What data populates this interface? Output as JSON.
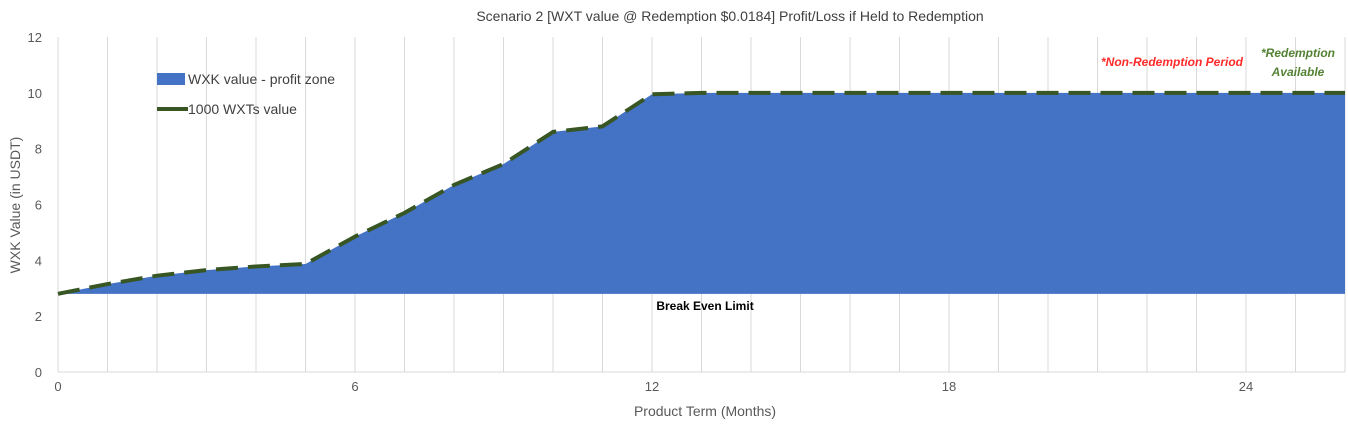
{
  "chart_data": {
    "type": "area",
    "title": "Scenario 2 [WXT value @ Redemption $0.0184] Profit/Loss if Held to Redemption",
    "xlabel": "Product Term (Months)",
    "ylabel": "WXK Value (in USDT)",
    "xlim": [
      0,
      26
    ],
    "ylim": [
      0,
      12
    ],
    "x_ticks": [
      "0",
      "6",
      "12",
      "18",
      "24"
    ],
    "y_ticks": [
      "0",
      "2",
      "4",
      "6",
      "8",
      "10",
      "12"
    ],
    "grid": "vertical",
    "legend_position": "top-left",
    "series": [
      {
        "name": "WXK value - profit zone",
        "kind": "area",
        "color": "#4472C4",
        "baseline": 2.8,
        "x": [
          0,
          1,
          2,
          3,
          4,
          5,
          6,
          7,
          8,
          9,
          10,
          11,
          12,
          13,
          14,
          15,
          16,
          17,
          18,
          19,
          20,
          21,
          22,
          23,
          24,
          25,
          26
        ],
        "values": [
          2.8,
          3.15,
          3.45,
          3.65,
          3.78,
          3.87,
          4.85,
          5.7,
          6.7,
          7.45,
          8.6,
          8.8,
          9.95,
          10,
          10,
          10,
          10,
          10,
          10,
          10,
          10,
          10,
          10,
          10,
          10,
          10,
          10
        ]
      },
      {
        "name": "1000 WXTs value",
        "kind": "line",
        "color": "#375623",
        "dashed": true,
        "x": [
          0,
          1,
          2,
          3,
          4,
          5,
          6,
          7,
          8,
          9,
          10,
          11,
          12,
          13,
          14,
          15,
          16,
          17,
          18,
          19,
          20,
          21,
          22,
          23,
          24,
          25,
          26
        ],
        "values": [
          2.8,
          3.15,
          3.45,
          3.65,
          3.78,
          3.87,
          4.85,
          5.7,
          6.7,
          7.45,
          8.6,
          8.8,
          9.95,
          10,
          10,
          10,
          10,
          10,
          10,
          10,
          10,
          10,
          10,
          10,
          10,
          10,
          10
        ]
      }
    ],
    "annotations": {
      "break_even": "Break Even Limit",
      "non_redemption": "*Non-Redemption Period",
      "redemption_line1": "*Redemption",
      "redemption_line2": "Available",
      "non_redemption_color": "#FF2B2B",
      "redemption_color": "#548235"
    }
  }
}
